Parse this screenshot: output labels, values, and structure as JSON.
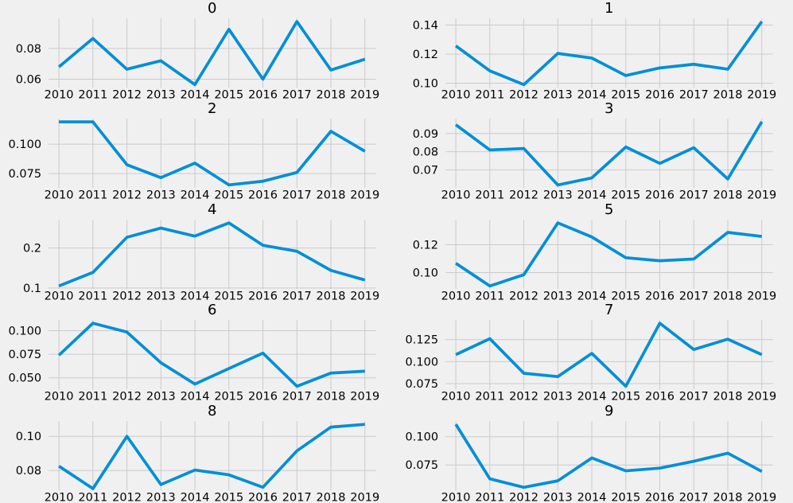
{
  "figure": {
    "rows": 5,
    "cols": 2,
    "background": "#f0f0f0"
  },
  "style": {
    "line_color": "#008fd5",
    "grid_color": "#cbcbcb",
    "text_color": "#000000",
    "axes_background": "#f0f0f0",
    "line_width": 3.7
  },
  "chart_data": [
    {
      "type": "line",
      "title": "0",
      "x": [
        "2010",
        "2011",
        "2012",
        "2013",
        "2014",
        "2015",
        "2016",
        "2017",
        "2018",
        "2019"
      ],
      "values": [
        0.068,
        0.0865,
        0.0665,
        0.072,
        0.0565,
        0.0925,
        0.06,
        0.0975,
        0.066,
        0.073
      ],
      "ytick_labels": [
        "0.06",
        "0.08"
      ],
      "ytick_values": [
        0.06,
        0.08
      ],
      "ylim": [
        0.0544,
        0.0996
      ],
      "grid": true,
      "legend": false
    },
    {
      "type": "line",
      "title": "1",
      "x": [
        "2010",
        "2011",
        "2012",
        "2013",
        "2014",
        "2015",
        "2016",
        "2017",
        "2018",
        "2019"
      ],
      "values": [
        0.1257,
        0.1085,
        0.099,
        0.1205,
        0.1173,
        0.1052,
        0.1105,
        0.113,
        0.1096,
        0.1424
      ],
      "ytick_labels": [
        "0.10",
        "0.12",
        "0.14"
      ],
      "ytick_values": [
        0.1,
        0.12,
        0.14
      ],
      "ylim": [
        0.0968,
        0.1446
      ],
      "grid": true,
      "legend": false
    },
    {
      "type": "line",
      "title": "2",
      "x": [
        "2010",
        "2011",
        "2012",
        "2013",
        "2014",
        "2015",
        "2016",
        "2017",
        "2018",
        "2019"
      ],
      "values": [
        0.119,
        0.119,
        0.0826,
        0.0716,
        0.0839,
        0.0654,
        0.0685,
        0.076,
        0.111,
        0.094
      ],
      "ytick_labels": [
        "0.075",
        "0.100"
      ],
      "ytick_values": [
        0.075,
        0.1
      ],
      "ylim": [
        0.0627,
        0.1217
      ],
      "grid": true,
      "legend": false
    },
    {
      "type": "line",
      "title": "3",
      "x": [
        "2010",
        "2011",
        "2012",
        "2013",
        "2014",
        "2015",
        "2016",
        "2017",
        "2018",
        "2019"
      ],
      "values": [
        0.0948,
        0.081,
        0.0818,
        0.0617,
        0.0656,
        0.0826,
        0.0736,
        0.0822,
        0.065,
        0.0965
      ],
      "ytick_labels": [
        "0.07",
        "0.08",
        "0.09"
      ],
      "ytick_values": [
        0.07,
        0.08,
        0.09
      ],
      "ylim": [
        0.06,
        0.0982
      ],
      "grid": true,
      "legend": false
    },
    {
      "type": "line",
      "title": "4",
      "x": [
        "2010",
        "2011",
        "2012",
        "2013",
        "2014",
        "2015",
        "2016",
        "2017",
        "2018",
        "2019"
      ],
      "values": [
        0.105,
        0.139,
        0.227,
        0.25,
        0.23,
        0.263,
        0.207,
        0.192,
        0.144,
        0.12
      ],
      "ytick_labels": [
        "0.1",
        "0.2"
      ],
      "ytick_values": [
        0.1,
        0.2
      ],
      "ylim": [
        0.0971,
        0.2709
      ],
      "grid": true,
      "legend": false
    },
    {
      "type": "line",
      "title": "5",
      "x": [
        "2010",
        "2011",
        "2012",
        "2013",
        "2014",
        "2015",
        "2016",
        "2017",
        "2018",
        "2019"
      ],
      "values": [
        0.1067,
        0.0904,
        0.0985,
        0.1357,
        0.1256,
        0.1107,
        0.1085,
        0.1098,
        0.1289,
        0.126
      ],
      "ytick_labels": [
        "0.10",
        "0.12"
      ],
      "ytick_values": [
        0.1,
        0.12
      ],
      "ylim": [
        0.0881,
        0.138
      ],
      "grid": true,
      "legend": false
    },
    {
      "type": "line",
      "title": "6",
      "x": [
        "2010",
        "2011",
        "2012",
        "2013",
        "2014",
        "2015",
        "2016",
        "2017",
        "2018",
        "2019"
      ],
      "values": [
        0.074,
        0.108,
        0.0986,
        0.066,
        0.0434,
        0.0598,
        0.0762,
        0.041,
        0.055,
        0.057
      ],
      "ytick_labels": [
        "0.050",
        "0.075",
        "0.100"
      ],
      "ytick_values": [
        0.05,
        0.075,
        0.1
      ],
      "ylim": [
        0.0376,
        0.1114
      ],
      "grid": true,
      "legend": false
    },
    {
      "type": "line",
      "title": "7",
      "x": [
        "2010",
        "2011",
        "2012",
        "2013",
        "2014",
        "2015",
        "2016",
        "2017",
        "2018",
        "2019"
      ],
      "values": [
        0.1079,
        0.1261,
        0.0868,
        0.083,
        0.1094,
        0.072,
        0.1437,
        0.1138,
        0.1255,
        0.1079
      ],
      "ytick_labels": [
        "0.075",
        "0.100",
        "0.125"
      ],
      "ytick_values": [
        0.075,
        0.1,
        0.125
      ],
      "ylim": [
        0.0684,
        0.1473
      ],
      "grid": true,
      "legend": false
    },
    {
      "type": "line",
      "title": "8",
      "x": [
        "2010",
        "2011",
        "2012",
        "2013",
        "2014",
        "2015",
        "2016",
        "2017",
        "2018",
        "2019"
      ],
      "values": [
        0.0826,
        0.0694,
        0.1,
        0.0718,
        0.0803,
        0.0775,
        0.0702,
        0.0915,
        0.1054,
        0.107
      ],
      "ytick_labels": [
        "0.08",
        "0.10"
      ],
      "ytick_values": [
        0.08,
        0.1
      ],
      "ylim": [
        0.0683,
        0.1089
      ],
      "grid": true,
      "legend": false
    },
    {
      "type": "line",
      "title": "9",
      "x": [
        "2010",
        "2011",
        "2012",
        "2013",
        "2014",
        "2015",
        "2016",
        "2017",
        "2018",
        "2019"
      ],
      "values": [
        0.111,
        0.0628,
        0.0552,
        0.061,
        0.0812,
        0.0698,
        0.0722,
        0.0783,
        0.0854,
        0.0693
      ],
      "ytick_labels": [
        "0.075",
        "0.100"
      ],
      "ytick_values": [
        0.075,
        0.1
      ],
      "ylim": [
        0.0524,
        0.1138
      ],
      "grid": true,
      "legend": false
    }
  ]
}
